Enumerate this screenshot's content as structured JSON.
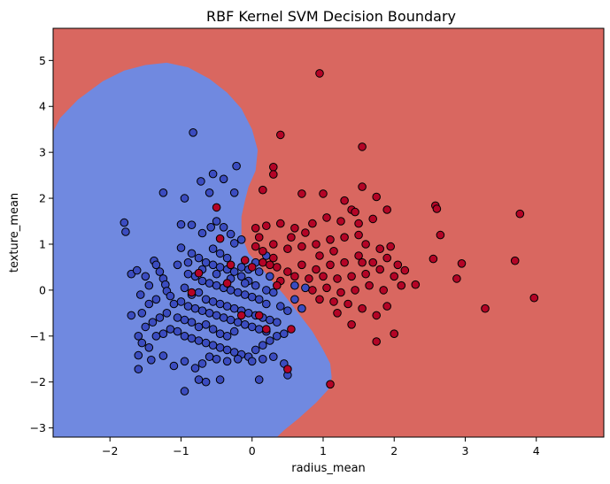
{
  "chart_data": {
    "type": "scatter",
    "title": "RBF Kernel SVM Decision Boundary",
    "xlabel": "radius_mean",
    "ylabel": "texture_mean",
    "xlim": [
      -2.8,
      4.95
    ],
    "ylim": [
      -3.2,
      5.7
    ],
    "xticks": [
      -2,
      -1,
      0,
      1,
      2,
      3,
      4
    ],
    "yticks": [
      -3,
      -2,
      -1,
      0,
      1,
      2,
      3,
      4,
      5
    ],
    "grid": false,
    "legend": "none",
    "background_region_color": "#d96760",
    "decision_region_color": "#7089e0",
    "decision_region_outline": [
      [
        -2.8,
        3.45
      ],
      [
        -2.7,
        3.75
      ],
      [
        -2.45,
        4.15
      ],
      [
        -2.1,
        4.55
      ],
      [
        -1.8,
        4.78
      ],
      [
        -1.5,
        4.9
      ],
      [
        -1.2,
        4.95
      ],
      [
        -0.9,
        4.85
      ],
      [
        -0.6,
        4.6
      ],
      [
        -0.35,
        4.3
      ],
      [
        -0.15,
        3.95
      ],
      [
        0.0,
        3.5
      ],
      [
        0.08,
        3.05
      ],
      [
        0.05,
        2.6
      ],
      [
        -0.05,
        2.25
      ],
      [
        -0.1,
        1.95
      ],
      [
        -0.15,
        1.6
      ],
      [
        -0.15,
        1.2
      ],
      [
        -0.05,
        0.8
      ],
      [
        0.1,
        0.55
      ],
      [
        0.25,
        0.25
      ],
      [
        0.45,
        -0.1
      ],
      [
        0.65,
        -0.5
      ],
      [
        0.85,
        -0.9
      ],
      [
        1.0,
        -1.3
      ],
      [
        1.1,
        -1.6
      ],
      [
        1.12,
        -1.9
      ],
      [
        1.08,
        -2.15
      ],
      [
        0.9,
        -2.45
      ],
      [
        0.65,
        -2.8
      ],
      [
        0.45,
        -3.05
      ],
      [
        0.35,
        -3.2
      ],
      [
        -2.8,
        -3.2
      ]
    ],
    "series": [
      {
        "color": "#3b4cc0",
        "points": [
          [
            -1.8,
            1.47
          ],
          [
            -1.78,
            1.27
          ],
          [
            -1.7,
            0.35
          ],
          [
            -1.62,
            0.43
          ],
          [
            -1.57,
            -0.1
          ],
          [
            -1.5,
            0.3
          ],
          [
            -1.45,
            0.1
          ],
          [
            -1.38,
            0.64
          ],
          [
            -1.35,
            0.55
          ],
          [
            -1.3,
            0.4
          ],
          [
            -1.25,
            0.25
          ],
          [
            -1.22,
            0.12
          ],
          [
            -1.2,
            -0.02
          ],
          [
            -1.15,
            -0.13
          ],
          [
            -1.25,
            2.12
          ],
          [
            -0.83,
            3.43
          ],
          [
            -0.72,
            2.37
          ],
          [
            -0.55,
            2.53
          ],
          [
            -0.4,
            2.42
          ],
          [
            -0.25,
            2.12
          ],
          [
            -0.22,
            2.7
          ],
          [
            -0.6,
            2.12
          ],
          [
            -0.95,
            2.0
          ],
          [
            -1.0,
            1.43
          ],
          [
            -0.85,
            1.42
          ],
          [
            -0.7,
            1.24
          ],
          [
            -0.58,
            1.37
          ],
          [
            -0.5,
            1.5
          ],
          [
            -0.4,
            1.37
          ],
          [
            -0.3,
            1.22
          ],
          [
            -0.25,
            1.02
          ],
          [
            -0.15,
            1.1
          ],
          [
            -1.0,
            0.92
          ],
          [
            -0.85,
            0.8
          ],
          [
            -0.75,
            0.7
          ],
          [
            -0.65,
            0.6
          ],
          [
            -0.55,
            0.55
          ],
          [
            -0.45,
            0.5
          ],
          [
            -0.35,
            0.45
          ],
          [
            -0.25,
            0.4
          ],
          [
            -0.15,
            0.3
          ],
          [
            -0.05,
            0.2
          ],
          [
            -1.05,
            0.55
          ],
          [
            -0.9,
            0.35
          ],
          [
            -0.8,
            0.3
          ],
          [
            -0.7,
            0.2
          ],
          [
            -0.6,
            0.15
          ],
          [
            -0.5,
            0.1
          ],
          [
            -0.4,
            0.05
          ],
          [
            -0.3,
            0.0
          ],
          [
            -0.2,
            -0.05
          ],
          [
            -0.1,
            -0.1
          ],
          [
            0.0,
            -0.15
          ],
          [
            0.1,
            -0.2
          ],
          [
            0.2,
            -0.3
          ],
          [
            -1.1,
            -0.3
          ],
          [
            -1.0,
            -0.25
          ],
          [
            -0.9,
            -0.35
          ],
          [
            -0.8,
            -0.4
          ],
          [
            -0.7,
            -0.45
          ],
          [
            -0.6,
            -0.5
          ],
          [
            -0.5,
            -0.55
          ],
          [
            -0.4,
            -0.6
          ],
          [
            -0.3,
            -0.65
          ],
          [
            -0.2,
            -0.7
          ],
          [
            -0.1,
            -0.75
          ],
          [
            0.0,
            -0.8
          ],
          [
            0.1,
            -0.85
          ],
          [
            0.2,
            -0.9
          ],
          [
            -1.2,
            -0.5
          ],
          [
            -1.3,
            -0.6
          ],
          [
            -1.4,
            -0.7
          ],
          [
            -1.5,
            -0.8
          ],
          [
            -1.6,
            -1.0
          ],
          [
            -1.55,
            -1.15
          ],
          [
            -1.45,
            -1.25
          ],
          [
            -1.35,
            -1.0
          ],
          [
            -1.25,
            -0.95
          ],
          [
            -1.15,
            -0.85
          ],
          [
            -1.05,
            -0.9
          ],
          [
            -0.95,
            -1.0
          ],
          [
            -0.85,
            -1.05
          ],
          [
            -0.75,
            -1.1
          ],
          [
            -0.65,
            -1.15
          ],
          [
            -0.55,
            -1.2
          ],
          [
            -0.45,
            -1.25
          ],
          [
            -0.35,
            -1.3
          ],
          [
            -0.25,
            -1.35
          ],
          [
            -0.15,
            -1.4
          ],
          [
            -0.05,
            -1.45
          ],
          [
            0.05,
            -1.3
          ],
          [
            0.15,
            -1.2
          ],
          [
            0.25,
            -1.1
          ],
          [
            0.35,
            -1.0
          ],
          [
            0.45,
            -0.95
          ],
          [
            -1.6,
            -1.42
          ],
          [
            -1.6,
            -1.72
          ],
          [
            -1.42,
            -1.52
          ],
          [
            -1.25,
            -1.43
          ],
          [
            -1.1,
            -1.65
          ],
          [
            -0.95,
            -1.55
          ],
          [
            -0.8,
            -1.7
          ],
          [
            -0.7,
            -1.6
          ],
          [
            -0.6,
            -1.45
          ],
          [
            -0.5,
            -1.5
          ],
          [
            -0.35,
            -1.55
          ],
          [
            -0.2,
            -1.5
          ],
          [
            0.0,
            -1.55
          ],
          [
            0.15,
            -1.5
          ],
          [
            0.3,
            -1.45
          ],
          [
            0.45,
            -1.6
          ],
          [
            0.5,
            -1.85
          ],
          [
            -0.75,
            -1.95
          ],
          [
            -0.65,
            -2.0
          ],
          [
            -0.95,
            -2.2
          ],
          [
            -0.45,
            -1.95
          ],
          [
            0.1,
            -1.95
          ],
          [
            -1.7,
            -0.55
          ],
          [
            -1.55,
            -0.5
          ],
          [
            -1.45,
            -0.3
          ],
          [
            -1.35,
            -0.2
          ],
          [
            -0.95,
            0.05
          ],
          [
            -0.85,
            -0.1
          ],
          [
            -0.75,
            -0.05
          ],
          [
            -0.65,
            -0.2
          ],
          [
            -0.55,
            -0.25
          ],
          [
            -0.45,
            -0.3
          ],
          [
            -0.35,
            -0.35
          ],
          [
            -0.25,
            -0.4
          ],
          [
            -0.15,
            -0.45
          ],
          [
            -0.05,
            -0.5
          ],
          [
            0.05,
            -0.55
          ],
          [
            0.15,
            -0.6
          ],
          [
            0.25,
            -0.65
          ],
          [
            0.35,
            -0.7
          ],
          [
            -0.9,
            0.6
          ],
          [
            -0.7,
            0.45
          ],
          [
            -0.5,
            0.35
          ],
          [
            -0.3,
            0.25
          ],
          [
            -0.1,
            0.15
          ],
          [
            0.05,
            0.1
          ],
          [
            -0.15,
            0.5
          ],
          [
            -0.05,
            0.45
          ],
          [
            0.05,
            0.6
          ],
          [
            0.2,
            0.75
          ],
          [
            0.1,
            0.4
          ],
          [
            -0.35,
            0.7
          ],
          [
            -0.45,
            0.8
          ],
          [
            -0.55,
            0.9
          ],
          [
            0.2,
            0.0
          ],
          [
            0.3,
            -0.05
          ],
          [
            0.25,
            0.3
          ],
          [
            0.4,
            -0.35
          ],
          [
            0.5,
            -0.45
          ],
          [
            0.6,
            -0.2
          ],
          [
            0.7,
            -0.4
          ],
          [
            -0.25,
            -0.9
          ],
          [
            -0.35,
            -1.0
          ],
          [
            -0.45,
            -0.95
          ],
          [
            -0.55,
            -0.85
          ],
          [
            -0.65,
            -0.75
          ],
          [
            -0.75,
            -0.8
          ],
          [
            -0.85,
            -0.7
          ],
          [
            -0.95,
            -0.65
          ],
          [
            -1.05,
            -0.6
          ],
          [
            0.6,
            0.1
          ],
          [
            0.75,
            0.05
          ]
        ]
      },
      {
        "color": "#b40426",
        "points": [
          [
            0.95,
            4.72
          ],
          [
            0.4,
            3.38
          ],
          [
            1.55,
            3.12
          ],
          [
            0.3,
            2.68
          ],
          [
            0.3,
            2.52
          ],
          [
            0.15,
            2.18
          ],
          [
            1.55,
            2.25
          ],
          [
            0.7,
            2.1
          ],
          [
            1.0,
            2.1
          ],
          [
            1.75,
            2.03
          ],
          [
            1.3,
            1.95
          ],
          [
            1.9,
            1.75
          ],
          [
            1.4,
            1.75
          ],
          [
            1.45,
            1.7
          ],
          [
            2.58,
            1.84
          ],
          [
            2.6,
            1.77
          ],
          [
            3.77,
            1.66
          ],
          [
            2.65,
            1.2
          ],
          [
            2.55,
            0.68
          ],
          [
            2.95,
            0.58
          ],
          [
            3.7,
            0.64
          ],
          [
            3.97,
            -0.17
          ],
          [
            3.28,
            -0.4
          ],
          [
            2.88,
            0.25
          ],
          [
            2.3,
            0.12
          ],
          [
            2.15,
            0.43
          ],
          [
            1.05,
            1.58
          ],
          [
            1.25,
            1.5
          ],
          [
            1.5,
            1.45
          ],
          [
            1.7,
            1.55
          ],
          [
            0.85,
            1.45
          ],
          [
            0.6,
            1.35
          ],
          [
            0.4,
            1.45
          ],
          [
            0.2,
            1.4
          ],
          [
            0.05,
            1.35
          ],
          [
            1.5,
            1.2
          ],
          [
            1.3,
            1.15
          ],
          [
            1.1,
            1.1
          ],
          [
            0.9,
            1.0
          ],
          [
            0.7,
            0.95
          ],
          [
            0.5,
            0.9
          ],
          [
            0.3,
            1.0
          ],
          [
            0.15,
            0.85
          ],
          [
            1.6,
            1.0
          ],
          [
            1.8,
            0.9
          ],
          [
            1.9,
            0.7
          ],
          [
            1.7,
            0.6
          ],
          [
            1.5,
            0.75
          ],
          [
            1.3,
            0.6
          ],
          [
            1.1,
            0.55
          ],
          [
            0.9,
            0.45
          ],
          [
            0.7,
            0.55
          ],
          [
            0.5,
            0.4
          ],
          [
            0.35,
            0.5
          ],
          [
            0.15,
            0.6
          ],
          [
            1.8,
            0.45
          ],
          [
            1.6,
            0.35
          ],
          [
            1.4,
            0.3
          ],
          [
            1.2,
            0.25
          ],
          [
            1.0,
            0.3
          ],
          [
            0.8,
            0.25
          ],
          [
            0.6,
            0.3
          ],
          [
            0.4,
            0.2
          ],
          [
            2.0,
            0.3
          ],
          [
            2.1,
            0.1
          ],
          [
            1.85,
            0.0
          ],
          [
            1.65,
            0.1
          ],
          [
            1.45,
            0.0
          ],
          [
            1.25,
            -0.05
          ],
          [
            1.05,
            0.05
          ],
          [
            0.85,
            0.0
          ],
          [
            1.9,
            -0.35
          ],
          [
            1.75,
            -0.55
          ],
          [
            1.55,
            -0.4
          ],
          [
            1.35,
            -0.3
          ],
          [
            1.15,
            -0.25
          ],
          [
            0.95,
            -0.2
          ],
          [
            1.4,
            -0.75
          ],
          [
            2.0,
            -0.95
          ],
          [
            1.75,
            -1.12
          ],
          [
            1.2,
            -0.5
          ],
          [
            0.55,
            -0.85
          ],
          [
            0.5,
            -1.72
          ],
          [
            1.1,
            -2.05
          ],
          [
            -0.85,
            -0.05
          ],
          [
            -0.45,
            1.12
          ],
          [
            -0.5,
            1.8
          ],
          [
            0.35,
            0.1
          ],
          [
            0.25,
            0.55
          ],
          [
            0.05,
            0.95
          ],
          [
            -0.1,
            0.65
          ],
          [
            -0.3,
            0.55
          ],
          [
            0.1,
            -0.55
          ],
          [
            0.2,
            -0.85
          ],
          [
            -0.15,
            -0.55
          ],
          [
            -0.75,
            0.37
          ],
          [
            -0.35,
            0.15
          ],
          [
            0.0,
            0.5
          ],
          [
            0.95,
            0.75
          ],
          [
            1.15,
            0.85
          ],
          [
            0.55,
            1.15
          ],
          [
            2.05,
            0.55
          ],
          [
            1.55,
            0.6
          ],
          [
            0.75,
            1.25
          ],
          [
            1.95,
            0.95
          ],
          [
            0.3,
            0.7
          ],
          [
            0.1,
            1.15
          ]
        ]
      }
    ]
  }
}
